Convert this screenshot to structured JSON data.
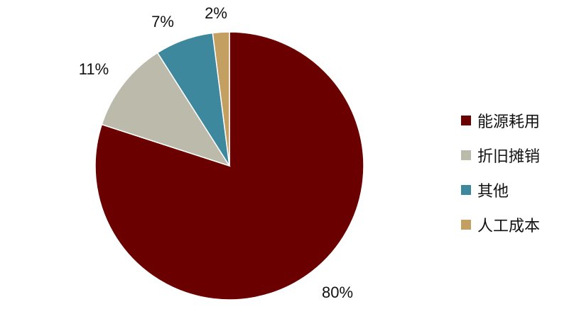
{
  "chart_data": {
    "type": "pie",
    "start": "top",
    "direction": "clockwise",
    "slices": [
      {
        "name": "能源耗用",
        "value": 80,
        "label": "80%",
        "color": "#6B0000"
      },
      {
        "name": "折旧摊销",
        "value": 11,
        "label": "11%",
        "color": "#BCBAAA"
      },
      {
        "name": "其他",
        "value": 7,
        "label": "7%",
        "color": "#3E889E"
      },
      {
        "name": "人工成本",
        "value": 2,
        "label": "2%",
        "color": "#C3A062"
      }
    ],
    "legend_position": "right"
  }
}
